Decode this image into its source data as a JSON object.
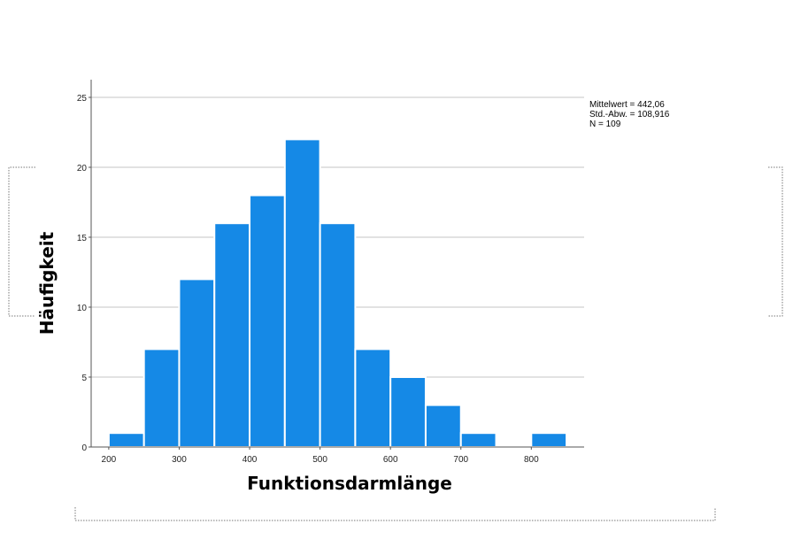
{
  "chart_data": {
    "type": "bar",
    "title": "",
    "xlabel": "Funktionsdarmlänge",
    "ylabel": "Häufigkeit",
    "bin_edges": [
      200,
      250,
      300,
      350,
      400,
      450,
      500,
      550,
      600,
      650,
      700,
      750,
      800,
      850
    ],
    "values": [
      1,
      7,
      12,
      16,
      18,
      22,
      16,
      7,
      5,
      3,
      1,
      0,
      1
    ],
    "xticks": [
      "200",
      "300",
      "400",
      "500",
      "600",
      "700",
      "800"
    ],
    "yticks": [
      "0",
      "5",
      "10",
      "15",
      "20",
      "25"
    ],
    "xlim": [
      175,
      875
    ],
    "ylim": [
      0,
      25
    ],
    "grid": "horizontal",
    "bar_color": "#1589E6",
    "stats": [
      "Mittelwert = 442,06",
      "Std.-Abw. = 108,916",
      "N = 109"
    ]
  }
}
